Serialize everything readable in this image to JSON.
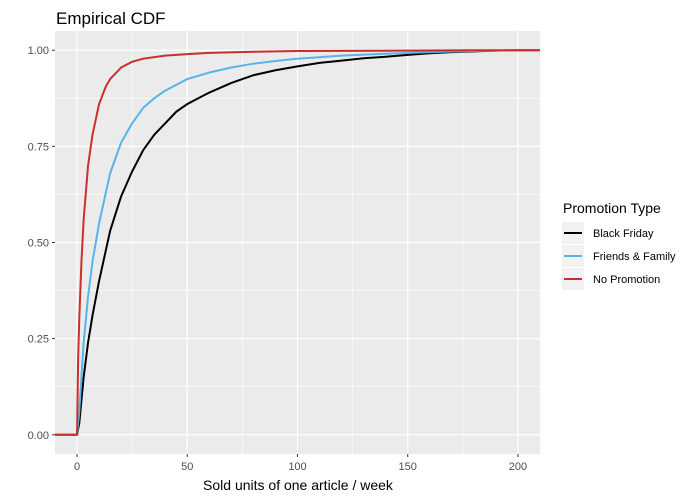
{
  "chart_data": {
    "type": "line",
    "title": "Empirical CDF",
    "xlabel": "Sold units of one article / week",
    "ylabel": "",
    "xlim": [
      -10,
      210
    ],
    "ylim": [
      -0.05,
      1.05
    ],
    "x_ticks": [
      0,
      50,
      100,
      150,
      200
    ],
    "x_tick_labels": [
      "0",
      "50",
      "100",
      "150",
      "200"
    ],
    "y_ticks": [
      0,
      0.25,
      0.5,
      0.75,
      1.0
    ],
    "y_tick_labels": [
      "0.00",
      "0.25",
      "0.50",
      "0.75",
      "1.00"
    ],
    "grid": true,
    "legend": {
      "title": "Promotion Type",
      "position": "right"
    },
    "series": [
      {
        "name": "Black Friday",
        "color": "#000000",
        "points": [
          [
            -10,
            0
          ],
          [
            0,
            0
          ],
          [
            1,
            0.03
          ],
          [
            2,
            0.09
          ],
          [
            3,
            0.15
          ],
          [
            5,
            0.24
          ],
          [
            7,
            0.31
          ],
          [
            10,
            0.4
          ],
          [
            15,
            0.53
          ],
          [
            20,
            0.62
          ],
          [
            25,
            0.685
          ],
          [
            30,
            0.74
          ],
          [
            35,
            0.78
          ],
          [
            40,
            0.81
          ],
          [
            45,
            0.84
          ],
          [
            50,
            0.86
          ],
          [
            55,
            0.875
          ],
          [
            60,
            0.89
          ],
          [
            70,
            0.915
          ],
          [
            80,
            0.935
          ],
          [
            90,
            0.948
          ],
          [
            100,
            0.958
          ],
          [
            110,
            0.967
          ],
          [
            120,
            0.973
          ],
          [
            130,
            0.979
          ],
          [
            140,
            0.983
          ],
          [
            150,
            0.988
          ],
          [
            160,
            0.992
          ],
          [
            170,
            0.995
          ],
          [
            180,
            0.997
          ],
          [
            190,
            0.999
          ],
          [
            200,
            1.0
          ],
          [
            210,
            1.0
          ]
        ]
      },
      {
        "name": "Friends & Family",
        "color": "#56B4E9",
        "points": [
          [
            -10,
            0
          ],
          [
            0,
            0
          ],
          [
            1,
            0.06
          ],
          [
            2,
            0.15
          ],
          [
            3,
            0.24
          ],
          [
            5,
            0.36
          ],
          [
            7,
            0.45
          ],
          [
            10,
            0.55
          ],
          [
            15,
            0.68
          ],
          [
            20,
            0.76
          ],
          [
            25,
            0.81
          ],
          [
            30,
            0.85
          ],
          [
            35,
            0.875
          ],
          [
            40,
            0.895
          ],
          [
            45,
            0.91
          ],
          [
            50,
            0.925
          ],
          [
            60,
            0.942
          ],
          [
            70,
            0.955
          ],
          [
            80,
            0.965
          ],
          [
            90,
            0.972
          ],
          [
            100,
            0.978
          ],
          [
            120,
            0.986
          ],
          [
            140,
            0.991
          ],
          [
            160,
            0.995
          ],
          [
            180,
            0.998
          ],
          [
            200,
            1.0
          ],
          [
            210,
            1.0
          ]
        ]
      },
      {
        "name": "No Promotion",
        "color": "#C9302C",
        "points": [
          [
            -10,
            0
          ],
          [
            0,
            0
          ],
          [
            0.5,
            0.2
          ],
          [
            1,
            0.3
          ],
          [
            2,
            0.45
          ],
          [
            3,
            0.56
          ],
          [
            5,
            0.7
          ],
          [
            7,
            0.78
          ],
          [
            10,
            0.86
          ],
          [
            13,
            0.905
          ],
          [
            15,
            0.925
          ],
          [
            20,
            0.955
          ],
          [
            25,
            0.97
          ],
          [
            30,
            0.978
          ],
          [
            40,
            0.986
          ],
          [
            50,
            0.99
          ],
          [
            60,
            0.993
          ],
          [
            80,
            0.996
          ],
          [
            100,
            0.998
          ],
          [
            150,
            0.999
          ],
          [
            180,
            1.0
          ],
          [
            210,
            1.0
          ]
        ]
      }
    ]
  }
}
